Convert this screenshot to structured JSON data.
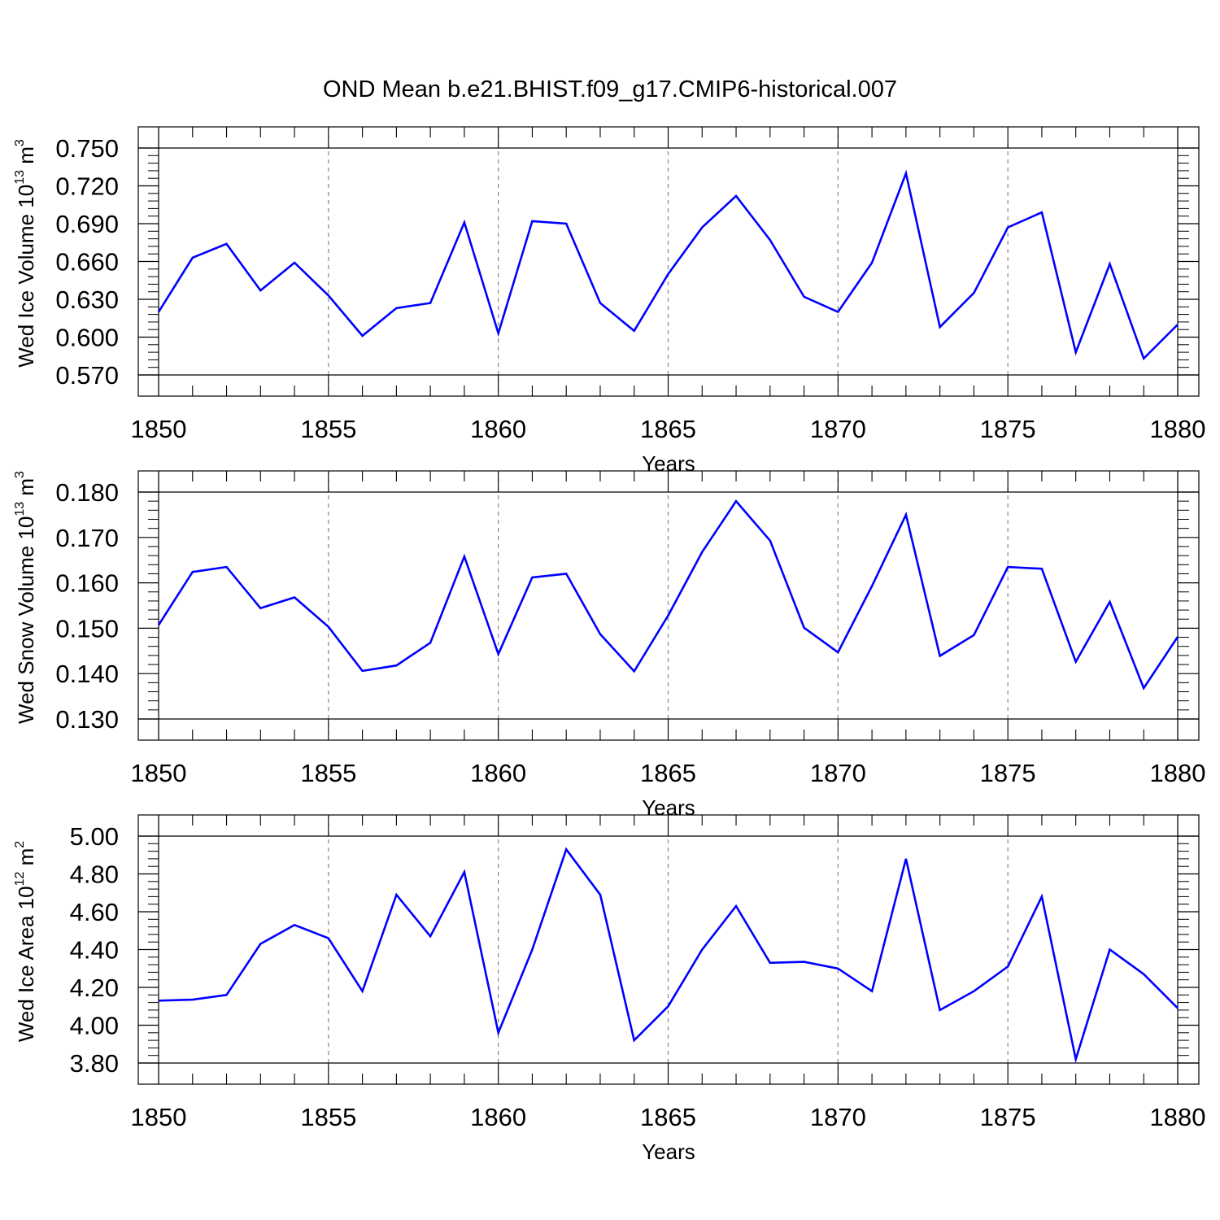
{
  "chart_data": {
    "title": "OND Mean b.e21.BHIST.f09_g17.CMIP6-historical.007",
    "type": "line",
    "line_color": "#0000ff",
    "grid": "vertical dashed at major x ticks",
    "panels": [
      {
        "ylabel": {
          "prefix": "Wed Ice Volume 10",
          "exp": "13",
          "unit": " m",
          "unit_exp": "3"
        },
        "xlabel": "Years",
        "ylim": [
          0.57,
          0.75
        ],
        "yticks": [
          "0.750",
          "0.720",
          "0.690",
          "0.660",
          "0.630",
          "0.600",
          "0.570"
        ],
        "ytick_values": [
          0.75,
          0.72,
          0.69,
          0.66,
          0.63,
          0.6,
          0.57
        ],
        "xlim": [
          1850,
          1880
        ],
        "xticks": [
          "1850",
          "1855",
          "1860",
          "1865",
          "1870",
          "1875",
          "1880"
        ],
        "x": [
          1850,
          1851,
          1852,
          1853,
          1854,
          1855,
          1856,
          1857,
          1858,
          1859,
          1860,
          1861,
          1862,
          1863,
          1864,
          1865,
          1866,
          1867,
          1868,
          1869,
          1870,
          1871,
          1872,
          1873,
          1874,
          1875,
          1876,
          1877,
          1878,
          1879,
          1880
        ],
        "values": [
          0.62,
          0.663,
          0.674,
          0.637,
          0.659,
          0.633,
          0.601,
          0.623,
          0.627,
          0.691,
          0.603,
          0.692,
          0.69,
          0.627,
          0.605,
          0.65,
          0.687,
          0.712,
          0.677,
          0.632,
          0.62,
          0.659,
          0.73,
          0.608,
          0.635,
          0.687,
          0.699,
          0.588,
          0.658,
          0.583,
          0.61
        ]
      },
      {
        "ylabel": {
          "prefix": "Wed Snow Volume 10",
          "exp": "13",
          "unit": " m",
          "unit_exp": "3"
        },
        "xlabel": "Years",
        "ylim": [
          0.13,
          0.18
        ],
        "yticks": [
          "0.180",
          "0.170",
          "0.160",
          "0.150",
          "0.140",
          "0.130"
        ],
        "ytick_values": [
          0.18,
          0.17,
          0.16,
          0.15,
          0.14,
          0.13
        ],
        "xlim": [
          1850,
          1880
        ],
        "xticks": [
          "1850",
          "1855",
          "1860",
          "1865",
          "1870",
          "1875",
          "1880"
        ],
        "x": [
          1850,
          1851,
          1852,
          1853,
          1854,
          1855,
          1856,
          1857,
          1858,
          1859,
          1860,
          1861,
          1862,
          1863,
          1864,
          1865,
          1866,
          1867,
          1868,
          1869,
          1870,
          1871,
          1872,
          1873,
          1874,
          1875,
          1876,
          1877,
          1878,
          1879,
          1880
        ],
        "values": [
          0.1507,
          0.1624,
          0.1635,
          0.1544,
          0.1568,
          0.1503,
          0.1406,
          0.1418,
          0.1468,
          0.1658,
          0.1443,
          0.1612,
          0.162,
          0.1487,
          0.1405,
          0.1528,
          0.1668,
          0.178,
          0.1693,
          0.1501,
          0.1447,
          0.1593,
          0.175,
          0.1439,
          0.1485,
          0.1635,
          0.1631,
          0.1426,
          0.1558,
          0.1368,
          0.1481
        ]
      },
      {
        "ylabel": {
          "prefix": "Wed Ice Area 10",
          "exp": "12",
          "unit": " m",
          "unit_exp": "2"
        },
        "xlabel": "Years",
        "ylim": [
          3.8,
          5.0
        ],
        "yticks": [
          "5.00",
          "4.80",
          "4.60",
          "4.40",
          "4.20",
          "4.00",
          "3.80"
        ],
        "ytick_values": [
          5.0,
          4.8,
          4.6,
          4.4,
          4.2,
          4.0,
          3.8
        ],
        "xlim": [
          1850,
          1880
        ],
        "xticks": [
          "1850",
          "1855",
          "1860",
          "1865",
          "1870",
          "1875",
          "1880"
        ],
        "x": [
          1850,
          1851,
          1852,
          1853,
          1854,
          1855,
          1856,
          1857,
          1858,
          1859,
          1860,
          1861,
          1862,
          1863,
          1864,
          1865,
          1866,
          1867,
          1868,
          1869,
          1870,
          1871,
          1872,
          1873,
          1874,
          1875,
          1876,
          1877,
          1878,
          1879,
          1880
        ],
        "values": [
          4.13,
          4.135,
          4.16,
          4.43,
          4.53,
          4.46,
          4.18,
          4.69,
          4.47,
          4.81,
          3.96,
          4.4,
          4.93,
          4.69,
          3.92,
          4.1,
          4.4,
          4.63,
          4.33,
          4.335,
          4.3,
          4.18,
          4.88,
          4.08,
          4.18,
          4.31,
          4.68,
          3.82,
          4.4,
          4.27,
          4.09
        ]
      }
    ]
  }
}
